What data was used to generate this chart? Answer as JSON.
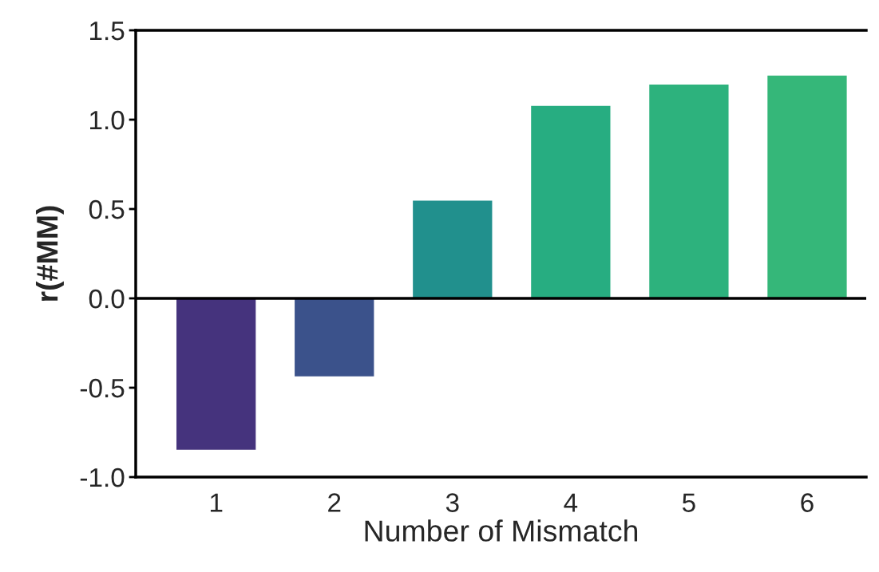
{
  "chart_data": {
    "type": "bar",
    "xlabel": "Number of Mismatch",
    "ylabel": "r(#MM)",
    "categories": [
      "1",
      "2",
      "3",
      "4",
      "5",
      "6"
    ],
    "values": [
      -0.85,
      -0.44,
      0.55,
      1.08,
      1.2,
      1.25
    ],
    "colors": [
      "#45337d",
      "#3b528b",
      "#21908d",
      "#27ad81",
      "#2db27d",
      "#35b779"
    ],
    "ylim": [
      -1.0,
      1.5
    ],
    "yticks": [
      {
        "value": -1.0,
        "label": "-1.0"
      },
      {
        "value": -0.5,
        "label": "-0.5"
      },
      {
        "value": 0.0,
        "label": "0.0"
      },
      {
        "value": 0.5,
        "label": "0.5"
      },
      {
        "value": 1.0,
        "label": "1.0"
      },
      {
        "value": 1.5,
        "label": "1.5"
      }
    ],
    "ref_lines": [
      {
        "axis": "y",
        "value": 0,
        "color": "#000000"
      }
    ],
    "grid": false,
    "legend": false
  }
}
